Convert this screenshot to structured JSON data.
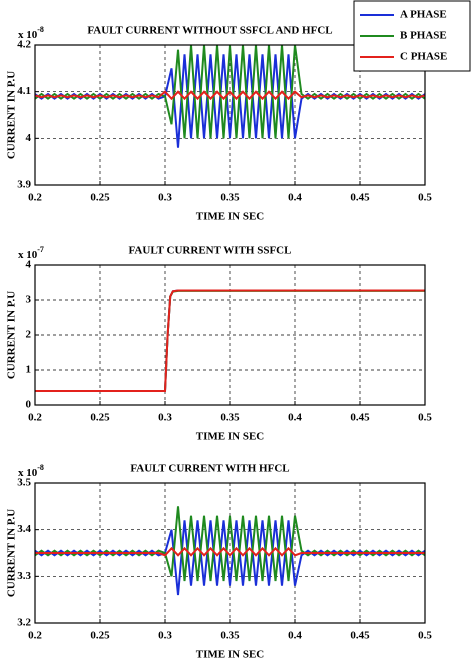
{
  "chart_data": [
    {
      "type": "line",
      "title": "FAULT CURRENT WITHOUT SSFCL AND HFCL",
      "xlabel": "TIME IN SEC",
      "ylabel": "CURRENT IN P.U",
      "multiplier": {
        "base": "x 10",
        "exponent": "-8"
      },
      "legend": "top-right",
      "grid": true,
      "xlim": [
        0.2,
        0.5
      ],
      "xticks": [
        0.2,
        0.25,
        0.3,
        0.35,
        0.4,
        0.45,
        0.5
      ],
      "ylim": [
        3.9,
        4.2
      ],
      "yticks": [
        3.9,
        4,
        4.1,
        4.2
      ],
      "x": [
        0.2,
        0.205,
        0.21,
        0.215,
        0.22,
        0.225,
        0.23,
        0.235,
        0.24,
        0.245,
        0.25,
        0.255,
        0.26,
        0.265,
        0.27,
        0.275,
        0.28,
        0.285,
        0.29,
        0.295,
        0.3,
        0.305,
        0.31,
        0.315,
        0.32,
        0.325,
        0.33,
        0.335,
        0.34,
        0.345,
        0.35,
        0.355,
        0.36,
        0.365,
        0.37,
        0.375,
        0.38,
        0.385,
        0.39,
        0.395,
        0.4,
        0.405,
        0.41,
        0.415,
        0.42,
        0.425,
        0.43,
        0.435,
        0.44,
        0.445,
        0.45,
        0.455,
        0.46,
        0.465,
        0.47,
        0.475,
        0.48,
        0.485,
        0.49,
        0.495,
        0.5
      ],
      "series": [
        {
          "name": "A PHASE",
          "color": "#1a2fd8",
          "values": [
            4.095,
            4.085,
            4.095,
            4.085,
            4.095,
            4.085,
            4.095,
            4.085,
            4.095,
            4.085,
            4.095,
            4.085,
            4.095,
            4.085,
            4.095,
            4.085,
            4.095,
            4.085,
            4.095,
            4.085,
            4.09,
            4.15,
            3.98,
            4.18,
            4.0,
            4.18,
            4.0,
            4.18,
            4.0,
            4.18,
            4.0,
            4.18,
            4.0,
            4.18,
            4.0,
            4.18,
            4.0,
            4.18,
            4.0,
            4.18,
            4.0,
            4.085,
            4.095,
            4.085,
            4.095,
            4.085,
            4.095,
            4.085,
            4.095,
            4.085,
            4.095,
            4.085,
            4.095,
            4.085,
            4.095,
            4.085,
            4.095,
            4.085,
            4.095,
            4.085,
            4.095
          ]
        },
        {
          "name": "B PHASE",
          "color": "#1f8a1f",
          "values": [
            4.085,
            4.095,
            4.085,
            4.095,
            4.085,
            4.095,
            4.085,
            4.095,
            4.085,
            4.095,
            4.085,
            4.095,
            4.085,
            4.095,
            4.085,
            4.095,
            4.085,
            4.095,
            4.085,
            4.095,
            4.09,
            4.03,
            4.19,
            4.0,
            4.2,
            4.0,
            4.2,
            4.0,
            4.2,
            4.0,
            4.2,
            4.0,
            4.2,
            4.0,
            4.2,
            4.0,
            4.2,
            4.0,
            4.2,
            4.0,
            4.2,
            4.095,
            4.085,
            4.095,
            4.085,
            4.095,
            4.085,
            4.095,
            4.085,
            4.095,
            4.085,
            4.095,
            4.085,
            4.095,
            4.085,
            4.095,
            4.085,
            4.095,
            4.085,
            4.095,
            4.085
          ]
        },
        {
          "name": "C PHASE",
          "color": "#e3211c",
          "values": [
            4.092,
            4.088,
            4.092,
            4.088,
            4.092,
            4.088,
            4.092,
            4.088,
            4.092,
            4.088,
            4.092,
            4.088,
            4.092,
            4.088,
            4.092,
            4.088,
            4.092,
            4.088,
            4.092,
            4.088,
            4.1,
            4.085,
            4.1,
            4.085,
            4.1,
            4.085,
            4.1,
            4.085,
            4.1,
            4.085,
            4.1,
            4.085,
            4.1,
            4.085,
            4.1,
            4.085,
            4.1,
            4.085,
            4.1,
            4.085,
            4.1,
            4.088,
            4.092,
            4.088,
            4.092,
            4.088,
            4.092,
            4.088,
            4.092,
            4.088,
            4.092,
            4.088,
            4.092,
            4.088,
            4.092,
            4.088,
            4.092,
            4.088,
            4.092,
            4.088,
            4.092
          ]
        }
      ]
    },
    {
      "type": "line",
      "title": "FAULT CURRENT WITH SSFCL",
      "xlabel": "TIME IN SEC",
      "ylabel": "CURRENT IN P.U",
      "multiplier": {
        "base": "x 10",
        "exponent": "-7"
      },
      "grid": true,
      "xlim": [
        0.2,
        0.5
      ],
      "xticks": [
        0.2,
        0.25,
        0.3,
        0.35,
        0.4,
        0.45,
        0.5
      ],
      "ylim": [
        0,
        4
      ],
      "yticks": [
        0,
        1,
        2,
        3,
        4
      ],
      "x": [
        0.2,
        0.3,
        0.302,
        0.304,
        0.306,
        0.31,
        0.5
      ],
      "series": [
        {
          "name": "A PHASE",
          "color": "#1a2fd8",
          "values": [
            0.4,
            0.4,
            2.0,
            3.1,
            3.25,
            3.27,
            3.27
          ]
        },
        {
          "name": "B PHASE",
          "color": "#1f8a1f",
          "values": [
            0.4,
            0.4,
            2.0,
            3.1,
            3.24,
            3.26,
            3.26
          ]
        },
        {
          "name": "C PHASE",
          "color": "#e3211c",
          "values": [
            0.4,
            0.4,
            2.0,
            3.1,
            3.25,
            3.27,
            3.27
          ]
        }
      ]
    },
    {
      "type": "line",
      "title": "FAULT CURRENT WITH HFCL",
      "xlabel": "TIME IN SEC",
      "ylabel": "CURRENT IN P.U",
      "multiplier": {
        "base": "x 10",
        "exponent": "-8"
      },
      "grid": true,
      "xlim": [
        0.2,
        0.5
      ],
      "xticks": [
        0.2,
        0.25,
        0.3,
        0.35,
        0.4,
        0.45,
        0.5
      ],
      "ylim": [
        3.2,
        3.5
      ],
      "yticks": [
        3.2,
        3.3,
        3.4,
        3.5
      ],
      "x": [
        0.2,
        0.205,
        0.21,
        0.215,
        0.22,
        0.225,
        0.23,
        0.235,
        0.24,
        0.245,
        0.25,
        0.255,
        0.26,
        0.265,
        0.27,
        0.275,
        0.28,
        0.285,
        0.29,
        0.295,
        0.3,
        0.305,
        0.31,
        0.315,
        0.32,
        0.325,
        0.33,
        0.335,
        0.34,
        0.345,
        0.35,
        0.355,
        0.36,
        0.365,
        0.37,
        0.375,
        0.38,
        0.385,
        0.39,
        0.395,
        0.4,
        0.405,
        0.41,
        0.415,
        0.42,
        0.425,
        0.43,
        0.435,
        0.44,
        0.445,
        0.45,
        0.455,
        0.46,
        0.465,
        0.47,
        0.475,
        0.48,
        0.485,
        0.49,
        0.495,
        0.5
      ],
      "series": [
        {
          "name": "A PHASE",
          "color": "#1a2fd8",
          "values": [
            3.355,
            3.345,
            3.355,
            3.345,
            3.355,
            3.345,
            3.355,
            3.345,
            3.355,
            3.345,
            3.355,
            3.345,
            3.355,
            3.345,
            3.355,
            3.345,
            3.355,
            3.345,
            3.355,
            3.345,
            3.35,
            3.4,
            3.26,
            3.42,
            3.28,
            3.42,
            3.28,
            3.42,
            3.28,
            3.42,
            3.28,
            3.42,
            3.28,
            3.42,
            3.28,
            3.42,
            3.28,
            3.42,
            3.28,
            3.42,
            3.28,
            3.345,
            3.355,
            3.345,
            3.355,
            3.345,
            3.355,
            3.345,
            3.355,
            3.345,
            3.355,
            3.345,
            3.355,
            3.345,
            3.355,
            3.345,
            3.355,
            3.345,
            3.355,
            3.345,
            3.355
          ]
        },
        {
          "name": "B PHASE",
          "color": "#1f8a1f",
          "values": [
            3.345,
            3.355,
            3.345,
            3.355,
            3.345,
            3.355,
            3.345,
            3.355,
            3.345,
            3.355,
            3.345,
            3.355,
            3.345,
            3.355,
            3.345,
            3.355,
            3.345,
            3.355,
            3.345,
            3.355,
            3.35,
            3.3,
            3.45,
            3.29,
            3.43,
            3.29,
            3.43,
            3.29,
            3.43,
            3.29,
            3.43,
            3.29,
            3.43,
            3.29,
            3.43,
            3.29,
            3.43,
            3.29,
            3.43,
            3.29,
            3.43,
            3.355,
            3.345,
            3.355,
            3.345,
            3.355,
            3.345,
            3.355,
            3.345,
            3.355,
            3.345,
            3.355,
            3.345,
            3.355,
            3.345,
            3.355,
            3.345,
            3.355,
            3.345,
            3.355,
            3.345
          ]
        },
        {
          "name": "C PHASE",
          "color": "#e3211c",
          "values": [
            3.35,
            3.35,
            3.35,
            3.35,
            3.35,
            3.35,
            3.35,
            3.35,
            3.35,
            3.35,
            3.35,
            3.35,
            3.35,
            3.35,
            3.35,
            3.35,
            3.35,
            3.35,
            3.35,
            3.35,
            3.345,
            3.36,
            3.345,
            3.36,
            3.345,
            3.36,
            3.345,
            3.36,
            3.345,
            3.36,
            3.345,
            3.36,
            3.345,
            3.36,
            3.345,
            3.36,
            3.345,
            3.36,
            3.345,
            3.36,
            3.345,
            3.35,
            3.35,
            3.35,
            3.35,
            3.35,
            3.35,
            3.35,
            3.35,
            3.35,
            3.35,
            3.35,
            3.35,
            3.35,
            3.35,
            3.35,
            3.35,
            3.35,
            3.35,
            3.35,
            3.35
          ]
        }
      ]
    }
  ]
}
